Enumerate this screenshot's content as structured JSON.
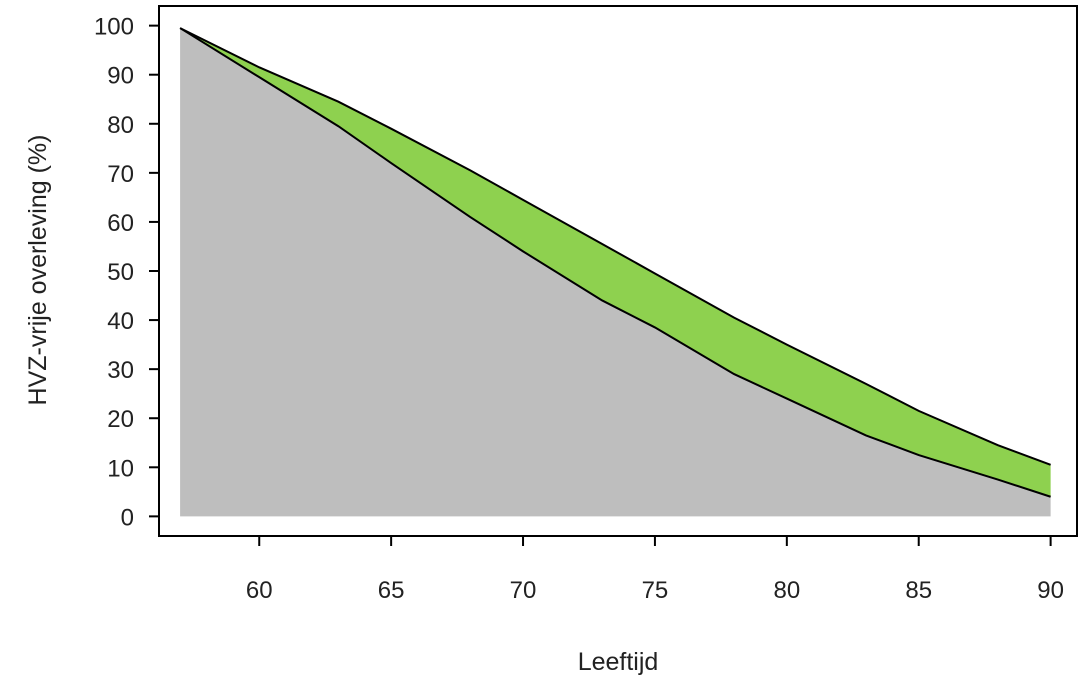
{
  "chart_data": {
    "type": "area",
    "title": "",
    "xlabel": "Leeftijd",
    "ylabel": "HVZ-vrije overleving (%)",
    "xlim": [
      56.2,
      91.0
    ],
    "ylim": [
      -4,
      104
    ],
    "x_ticks": [
      60,
      65,
      70,
      75,
      80,
      85,
      90
    ],
    "x_tick_labels": [
      "60",
      "65",
      "70",
      "75",
      "80",
      "85",
      "90"
    ],
    "y_ticks": [
      0,
      10,
      20,
      30,
      40,
      50,
      60,
      70,
      80,
      90,
      100
    ],
    "y_tick_labels": [
      "0",
      "10",
      "20",
      "30",
      "40",
      "50",
      "60",
      "70",
      "80",
      "90",
      "100"
    ],
    "grid": false,
    "colors": {
      "lower_fill": "#bebebe",
      "band_fill": "#8ed14f",
      "line": "#000000"
    },
    "x": [
      57,
      60,
      63,
      65,
      68,
      70,
      73,
      75,
      78,
      80,
      83,
      85,
      88,
      90
    ],
    "series": [
      {
        "values": [
          99.5,
          91.5,
          84.5,
          79,
          70.5,
          64.5,
          55.5,
          49.5,
          40.5,
          35,
          27,
          21.5,
          14.5,
          10.5
        ]
      },
      {
        "values": [
          99.5,
          89.5,
          79.5,
          72,
          61,
          54,
          44,
          38.5,
          29,
          24,
          16.5,
          12.5,
          7.5,
          4
        ]
      }
    ]
  }
}
